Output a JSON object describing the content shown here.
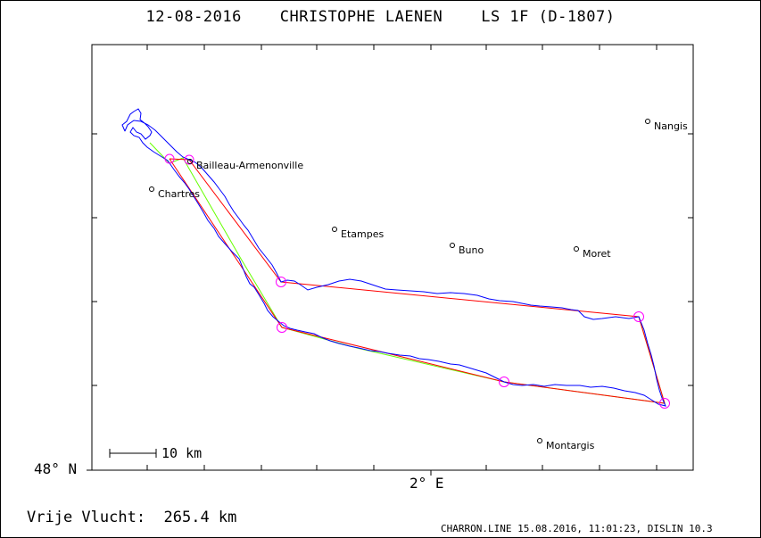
{
  "header": {
    "title": "12-08-2016    CHRISTOPHE LAENEN    LS 1F (D-1807)"
  },
  "axes": {
    "lat_label": "48° N",
    "lon_label": "2° E"
  },
  "scale_bar": {
    "label": "10 km"
  },
  "places": [
    {
      "name": "Nangis"
    },
    {
      "name": "Bailleau-Armenonville"
    },
    {
      "name": "Chartres"
    },
    {
      "name": "Etampes"
    },
    {
      "name": "Buno"
    },
    {
      "name": "Moret"
    },
    {
      "name": "Montargis"
    }
  ],
  "colors": {
    "track": "#0000ff",
    "task_line": "#ff0000",
    "optimized_line": "#66ff00",
    "turnpoint": "#ff00ff",
    "frame": "#000000"
  },
  "footer": {
    "distance": "Vrije Vlucht:  265.4 km",
    "info": "CHARRON.LINE 15.08.2016, 11:01:23, DISLIN 10.3"
  }
}
